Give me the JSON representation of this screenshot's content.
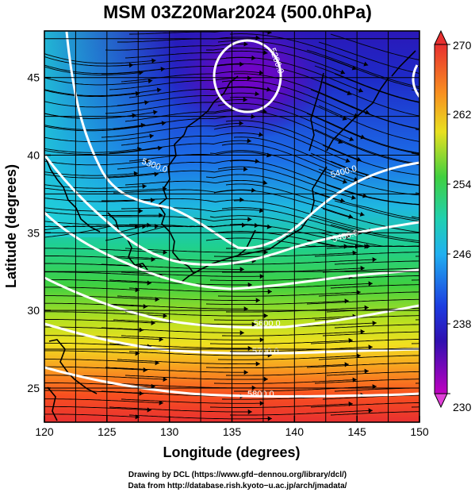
{
  "title": "MSM 03Z20Mar2024 (500.0hPa)",
  "x_axis": {
    "label": "Longitude (degrees)",
    "ticks": [
      "120",
      "125",
      "130",
      "135",
      "140",
      "145",
      "150"
    ]
  },
  "y_axis": {
    "label": "Latitude  (degrees)",
    "ticks": [
      "25",
      "30",
      "35",
      "40",
      "45"
    ]
  },
  "colorbar": {
    "ticks": [
      "270",
      "262",
      "254",
      "246",
      "238",
      "230"
    ]
  },
  "contour_labels": [
    "5200.0",
    "5300.0",
    "5400.0",
    "5400.0",
    "5600.0",
    "5700.0",
    "5800.0"
  ],
  "credits": {
    "line1": "Drawing by DCL (https://www.gfd−dennou.org/library/dcl/)",
    "line2": "Data from http://database.rish.kyoto−u.ac.jp/arch/jmadata/"
  },
  "colors": {
    "contour": "#ffffff",
    "streamline": "#000000",
    "coast": "#000000",
    "cold": "#7a00c8",
    "warm": "#ff3030"
  }
}
